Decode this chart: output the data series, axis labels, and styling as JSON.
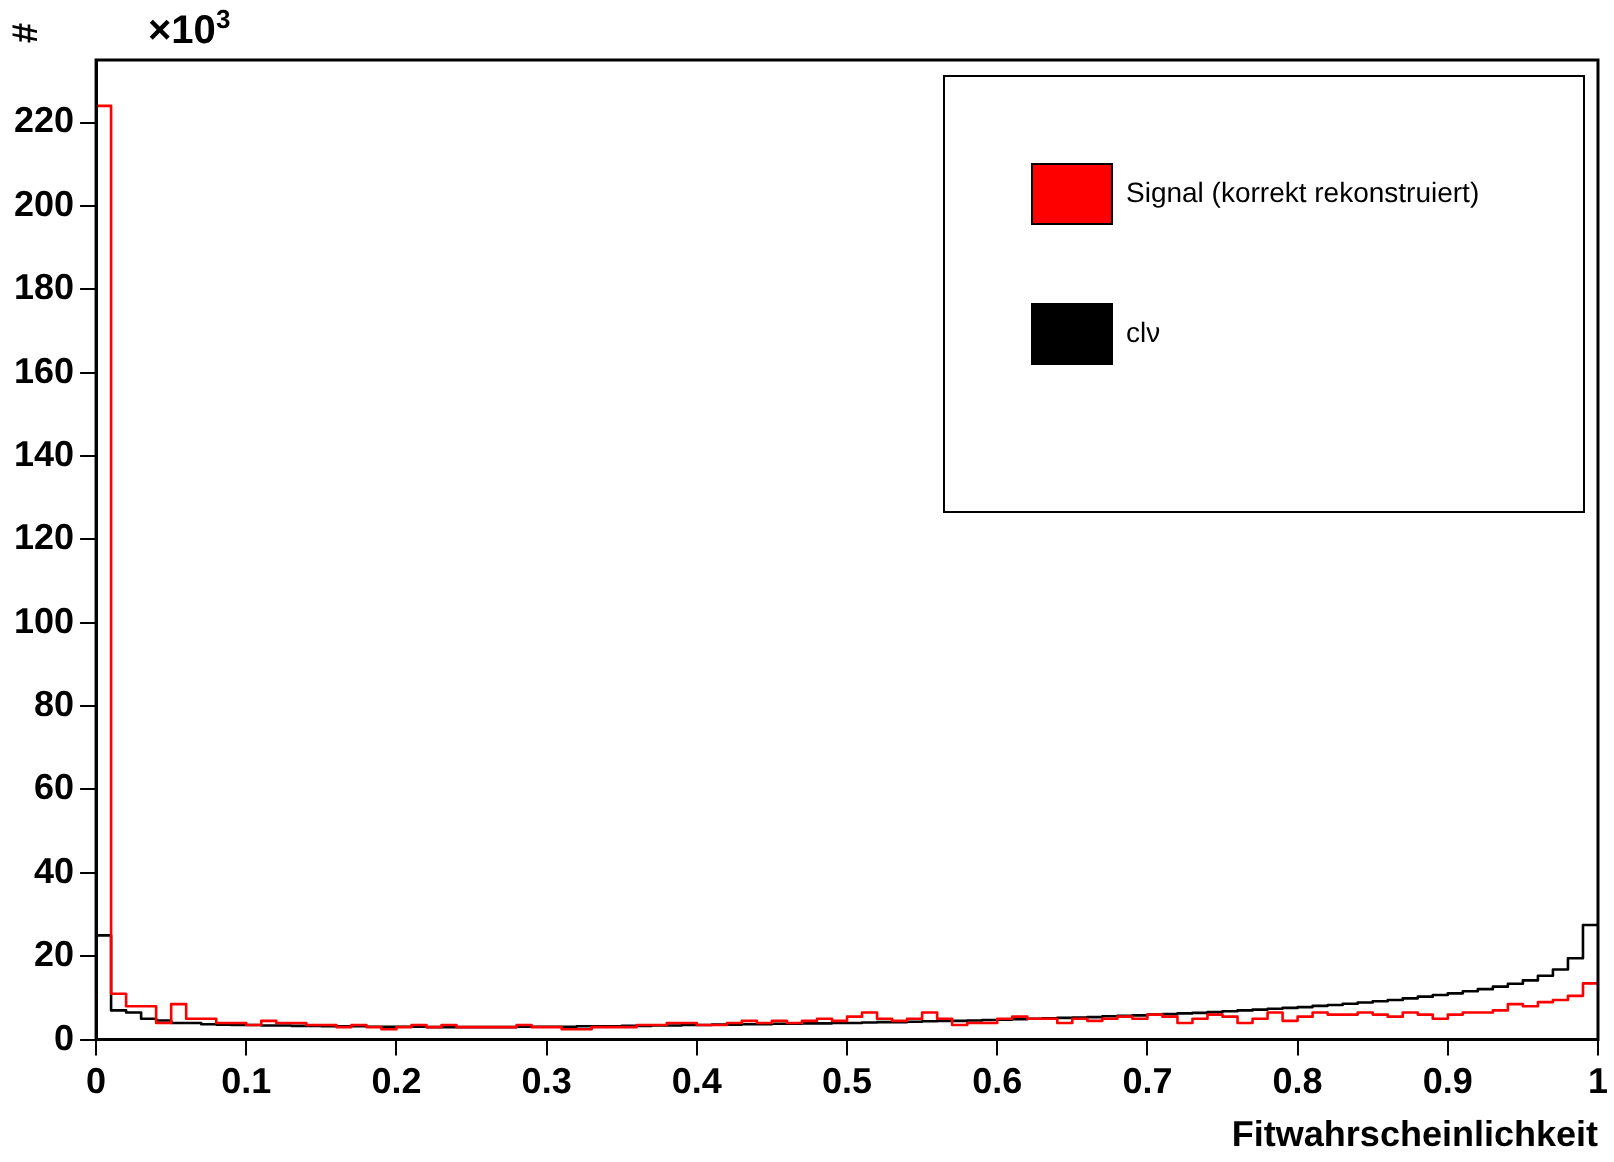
{
  "chart_data": {
    "type": "histogram",
    "xlabel": "Fitwahrscheinlichkeit",
    "ylabel": "#",
    "annotations": [
      "×10$^{3}$"
    ],
    "bins": [
      0,
      0.01,
      0.02,
      0.03,
      0.04,
      0.05,
      0.06,
      0.07,
      0.08,
      0.09,
      0.1,
      0.11,
      0.12,
      0.13,
      0.14,
      0.15,
      0.16,
      0.17,
      0.18,
      0.19,
      0.2,
      0.21,
      0.22,
      0.23,
      0.24,
      0.25,
      0.26,
      0.27,
      0.28,
      0.29,
      0.3,
      0.31,
      0.32,
      0.33,
      0.34,
      0.35,
      0.36,
      0.37,
      0.38,
      0.39,
      0.4,
      0.41,
      0.42,
      0.43,
      0.44,
      0.45,
      0.46,
      0.47,
      0.48,
      0.49,
      0.5,
      0.51,
      0.52,
      0.53,
      0.54,
      0.55,
      0.56,
      0.57,
      0.58,
      0.59,
      0.6,
      0.61,
      0.62,
      0.63,
      0.64,
      0.65,
      0.66,
      0.67,
      0.68,
      0.69,
      0.7,
      0.71,
      0.72,
      0.73,
      0.74,
      0.75,
      0.76,
      0.77,
      0.78,
      0.79,
      0.8,
      0.81,
      0.82,
      0.83,
      0.84,
      0.85,
      0.86,
      0.87,
      0.88,
      0.89,
      0.9,
      0.91,
      0.92,
      0.93,
      0.94,
      0.95,
      0.96,
      0.97,
      0.98,
      0.99,
      1
    ],
    "series": [
      {
        "name": "Signal (korrekt rekonstruiert)",
        "color": "#ff0000",
        "values": [
          224,
          11,
          8,
          8,
          4,
          8.5,
          5,
          5,
          4,
          4,
          3.5,
          4.5,
          4,
          4,
          3.5,
          3.5,
          3,
          3.5,
          3,
          2.5,
          3,
          3.5,
          3,
          3.5,
          3,
          3,
          3,
          3,
          3.5,
          3,
          3,
          2.5,
          2.5,
          3,
          3,
          3,
          3.5,
          3.5,
          4,
          4,
          3.5,
          3.5,
          4,
          4.5,
          4,
          4.5,
          4,
          4.5,
          5,
          4.5,
          5.5,
          6.5,
          5,
          4.5,
          5,
          6.5,
          5,
          3.5,
          4,
          4,
          5,
          5.5,
          5,
          5,
          4,
          5,
          4.5,
          5,
          5.5,
          5,
          6,
          5.5,
          4,
          5,
          6,
          5.5,
          4,
          5,
          6.5,
          4.5,
          5.5,
          6.5,
          6,
          6,
          6.5,
          6,
          5.5,
          6.5,
          6,
          5,
          6,
          6.5,
          6.5,
          7,
          8.5,
          8,
          9,
          9.5,
          10.5,
          13.5
        ]
      },
      {
        "name": "clν",
        "color": "#000000",
        "values": [
          25,
          7,
          6.5,
          5,
          4.6,
          4,
          4,
          3.7,
          3.6,
          3.5,
          3.5,
          3.4,
          3.4,
          3.3,
          3.3,
          3.2,
          3.2,
          3.2,
          3.1,
          3.1,
          3.1,
          3.1,
          3,
          3,
          3,
          3,
          3,
          3,
          3.1,
          3.1,
          3.1,
          3.1,
          3.2,
          3.2,
          3.2,
          3.3,
          3.3,
          3.4,
          3.4,
          3.5,
          3.5,
          3.6,
          3.6,
          3.7,
          3.7,
          3.8,
          3.8,
          3.9,
          3.9,
          4,
          4,
          4.1,
          4.2,
          4.2,
          4.3,
          4.4,
          4.5,
          4.5,
          4.6,
          4.7,
          4.8,
          4.9,
          5,
          5.1,
          5.2,
          5.3,
          5.4,
          5.6,
          5.7,
          5.8,
          6,
          6.1,
          6.3,
          6.4,
          6.6,
          6.8,
          7,
          7.2,
          7.4,
          7.6,
          7.8,
          8.1,
          8.3,
          8.6,
          8.9,
          9.2,
          9.5,
          9.9,
          10.3,
          10.7,
          11.1,
          11.6,
          12.1,
          12.7,
          13.4,
          14.2,
          15.3,
          16.8,
          19.5,
          27.5
        ]
      }
    ],
    "xlim": [
      0,
      1
    ],
    "xticks": [
      0,
      0.1,
      0.2,
      0.3,
      0.4,
      0.5,
      0.6,
      0.7,
      0.8,
      0.9,
      1
    ],
    "ylim": [
      0,
      235
    ],
    "yticks": [
      0,
      20,
      40,
      60,
      80,
      100,
      120,
      140,
      160,
      180,
      200,
      220
    ],
    "grid": false,
    "legend": "top right",
    "marker": "none"
  }
}
